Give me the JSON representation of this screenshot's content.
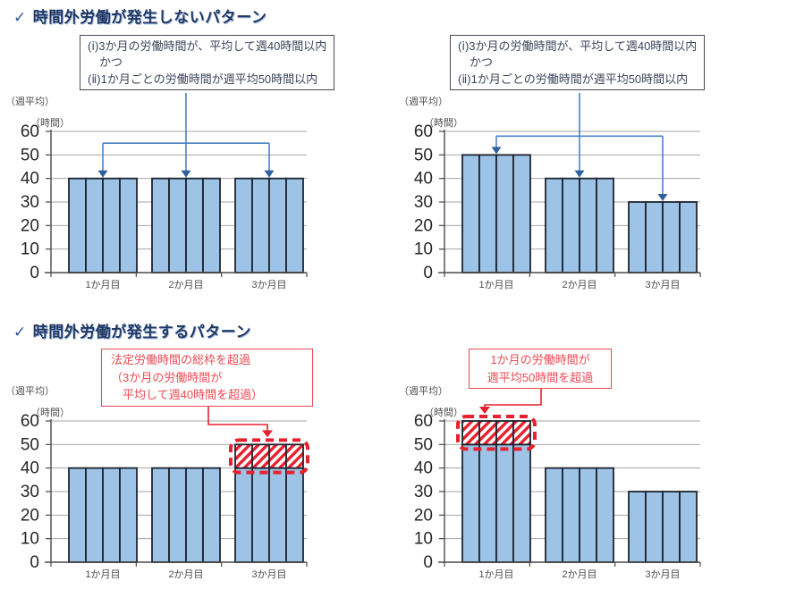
{
  "colors": {
    "title": "#1f3864",
    "check": "#2e5496",
    "note_text": "#3b4559",
    "note_border": "#454a52",
    "red": "#ea4a52",
    "red_strong": "#e8212e",
    "bar_fill": "#9dc3e6",
    "bar_border": "#1e2430",
    "grid": "#a6a6a6",
    "axis": "#4a4a4a",
    "tick_label": "#262626",
    "xlabel": "#4f4f4f",
    "arrow_blue": "#4a82c4",
    "arrow_head": "#2e5f9e"
  },
  "sections": [
    {
      "check": "✓",
      "title": "時間外労働が発生しないパターン"
    },
    {
      "check": "✓",
      "title": "時間外労働が発生するパターン"
    }
  ],
  "chart_data": [
    {
      "type": "bar",
      "title": "時間外労働が発生しないパターン（一定）",
      "categories": [
        "1か月目",
        "2か月目",
        "3か月目"
      ],
      "values": [
        40,
        40,
        40
      ],
      "bars_per_group": 4,
      "ylim": [
        0,
        60
      ],
      "ytick_step": 10,
      "yticks": [
        0,
        10,
        20,
        30,
        40,
        50,
        60
      ],
      "unit_labels": [
        "（週平均）",
        "（時間）"
      ],
      "annotation_lines": [
        "(ⅰ)3か月の労働時間が、平均して週40時間以内",
        "　かつ",
        "(ⅱ)1か月ごとの労働時間が週平均50時間以内"
      ],
      "blue_arrow_level": 55,
      "overtime": null
    },
    {
      "type": "bar",
      "title": "時間外労働が発生しないパターン（変動）",
      "categories": [
        "1か月目",
        "2か月目",
        "3か月目"
      ],
      "values": [
        50,
        40,
        30
      ],
      "bars_per_group": 4,
      "ylim": [
        0,
        60
      ],
      "ytick_step": 10,
      "yticks": [
        0,
        10,
        20,
        30,
        40,
        50,
        60
      ],
      "unit_labels": [
        "（週平均）",
        "（時間）"
      ],
      "annotation_lines": [
        "(ⅰ)3か月の労働時間が、平均して週40時間以内",
        "　かつ",
        "(ⅱ)1か月ごとの労働時間が週平均50時間以内"
      ],
      "blue_arrow_level": 58,
      "overtime": null
    },
    {
      "type": "bar",
      "title": "時間外労働が発生するパターン（総枠超過）",
      "categories": [
        "1か月目",
        "2か月目",
        "3か月目"
      ],
      "values": [
        40,
        40,
        40
      ],
      "bars_per_group": 4,
      "ylim": [
        0,
        60
      ],
      "ytick_step": 10,
      "yticks": [
        0,
        10,
        20,
        30,
        40,
        50,
        60
      ],
      "unit_labels": [
        "（週平均）",
        "（時間）"
      ],
      "annotation_lines": [
        "法定労働時間の総枠を超過",
        "（3か月の労働時間が",
        "　平均して週40時間を超過）"
      ],
      "blue_arrow_level": null,
      "overtime": {
        "month_index": 2,
        "from": 40,
        "to": 50
      }
    },
    {
      "type": "bar",
      "title": "時間外労働が発生するパターン（単月50時間超過）",
      "categories": [
        "1か月目",
        "2か月目",
        "3か月目"
      ],
      "values": [
        50,
        40,
        30
      ],
      "bars_per_group": 4,
      "ylim": [
        0,
        60
      ],
      "ytick_step": 10,
      "yticks": [
        0,
        10,
        20,
        30,
        40,
        50,
        60
      ],
      "unit_labels": [
        "（週平均）",
        "（時間）"
      ],
      "annotation_lines": [
        "1か月の労働時間が",
        "週平均50時間を超過"
      ],
      "blue_arrow_level": null,
      "overtime": {
        "month_index": 0,
        "from": 50,
        "to": 60
      }
    }
  ]
}
